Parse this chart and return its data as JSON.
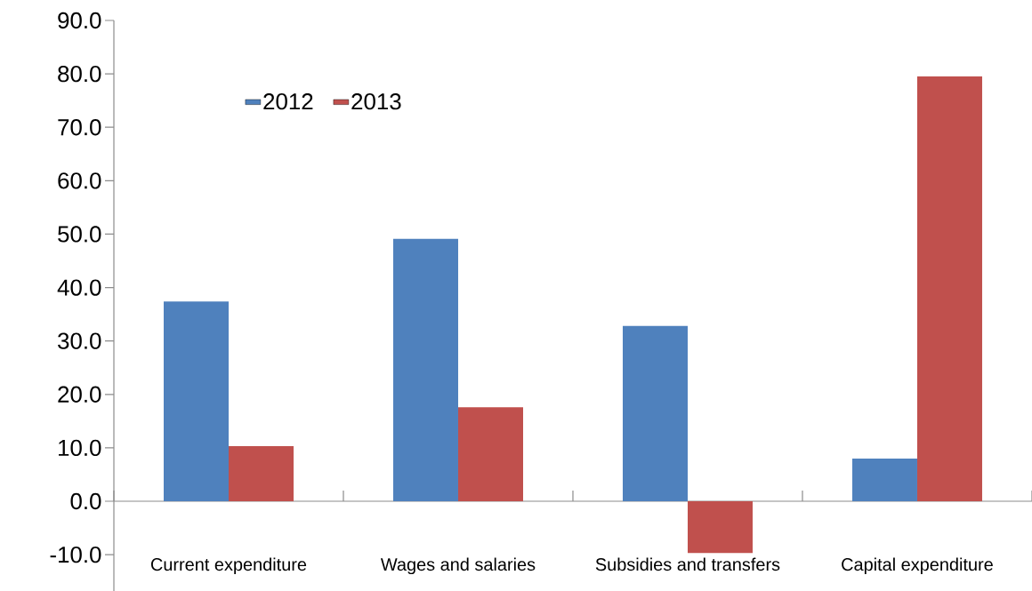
{
  "chart_data": {
    "type": "bar",
    "categories": [
      "Current expenditure",
      "Wages and salaries",
      "Subsidies and transfers",
      "Capital expenditure"
    ],
    "series": [
      {
        "name": "2012",
        "color": "#4f81bd",
        "values": [
          37.4,
          49.1,
          32.8,
          8.0
        ]
      },
      {
        "name": "2013",
        "color": "#c0504d",
        "values": [
          10.3,
          17.6,
          -9.7,
          79.5
        ]
      }
    ],
    "ylim": [
      -16.8,
      90
    ],
    "yticks": [
      {
        "value": -10,
        "label": "-10.0"
      },
      {
        "value": 0,
        "label": "0.0"
      },
      {
        "value": 10,
        "label": "10.0"
      },
      {
        "value": 20,
        "label": "20.0"
      },
      {
        "value": 30,
        "label": "30.0"
      },
      {
        "value": 40,
        "label": "40.0"
      },
      {
        "value": 50,
        "label": "50.0"
      },
      {
        "value": 60,
        "label": "60.0"
      },
      {
        "value": 70,
        "label": "70.0"
      },
      {
        "value": 80,
        "label": "80.0"
      },
      {
        "value": 90,
        "label": "90.0"
      }
    ],
    "legend": "top left"
  }
}
